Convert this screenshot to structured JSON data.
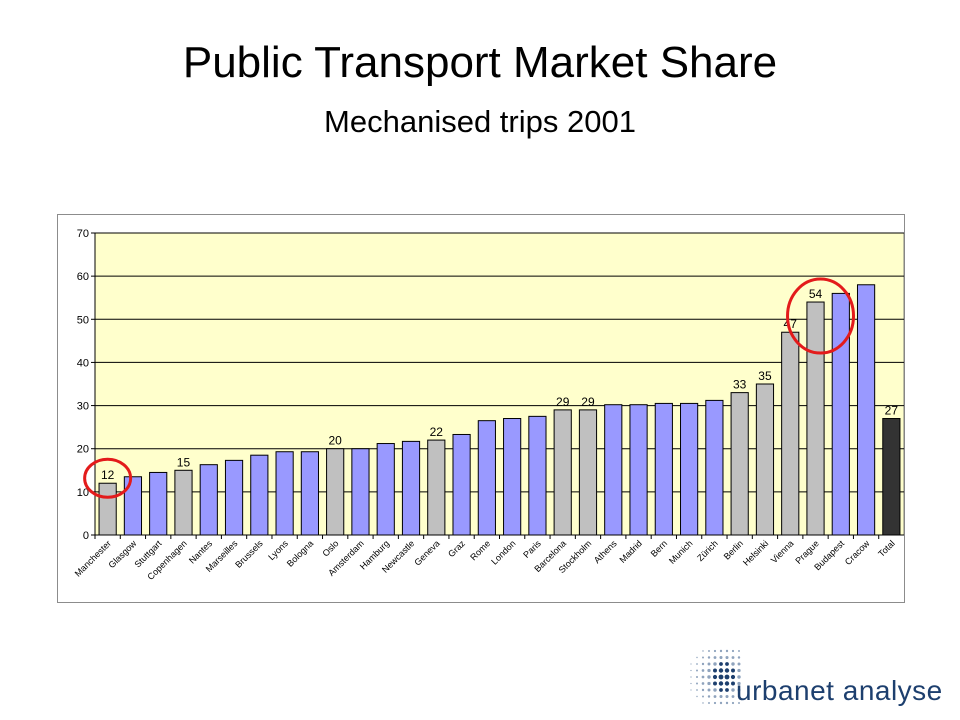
{
  "header": {
    "title": "Public Transport Market Share",
    "subtitle": "Mechanised trips 2001"
  },
  "logo": {
    "text": "urbanet analyse"
  },
  "colors": {
    "plot_background": "#ffffcc",
    "bar_blue": "#9999ff",
    "bar_grey": "#c0c0c0",
    "bar_total": "#333333",
    "highlight_circle": "#e31b1b"
  },
  "chart_data": {
    "type": "bar",
    "title": "",
    "xlabel": "",
    "ylabel": "",
    "ylim": [
      0,
      70
    ],
    "yticks": [
      0,
      10,
      20,
      30,
      40,
      50,
      60,
      70
    ],
    "grid": true,
    "legend": "none",
    "categories": [
      "Manchester",
      "Glasgow",
      "Stuttgart",
      "Copenhagen",
      "Nantes",
      "Marseilles",
      "Brussels",
      "Lyons",
      "Bologna",
      "Oslo",
      "Amsterdam",
      "Hamburg",
      "Newcastle",
      "Geneva",
      "Graz",
      "Rome",
      "London",
      "Paris",
      "Barcelona",
      "Stockholm",
      "Athens",
      "Madrid",
      "Bern",
      "Munich",
      "Zürich",
      "Berlin",
      "Helsinki",
      "Vienna",
      "Prague",
      "Budapest",
      "Cracow",
      "Total"
    ],
    "values": [
      12,
      13.5,
      14.5,
      15,
      16.3,
      17.3,
      18.5,
      19.3,
      19.3,
      20,
      20,
      21.2,
      21.7,
      22,
      23.3,
      26.5,
      27,
      27.5,
      29,
      29,
      30.2,
      30.2,
      30.5,
      30.5,
      31.2,
      33,
      35,
      47,
      54,
      56,
      58,
      27
    ],
    "bar_colors": [
      "grey",
      "blue",
      "blue",
      "grey",
      "blue",
      "blue",
      "blue",
      "blue",
      "blue",
      "grey",
      "blue",
      "blue",
      "blue",
      "grey",
      "blue",
      "blue",
      "blue",
      "blue",
      "grey",
      "grey",
      "blue",
      "blue",
      "blue",
      "blue",
      "blue",
      "grey",
      "grey",
      "grey",
      "grey",
      "blue",
      "blue",
      "total"
    ],
    "data_labels": [
      {
        "category": "Manchester",
        "text": "12"
      },
      {
        "category": "Copenhagen",
        "text": "15"
      },
      {
        "category": "Oslo",
        "text": "20"
      },
      {
        "category": "Geneva",
        "text": "22"
      },
      {
        "category": "Barcelona",
        "text": "29"
      },
      {
        "category": "Stockholm",
        "text": "29"
      },
      {
        "category": "Berlin",
        "text": "33"
      },
      {
        "category": "Helsinki",
        "text": "35"
      },
      {
        "category": "Vienna",
        "text": "47"
      },
      {
        "category": "Prague",
        "text": "54"
      },
      {
        "category": "Total",
        "text": "27"
      }
    ],
    "highlights": [
      {
        "category": "Manchester",
        "value": 12
      },
      {
        "category": "Prague",
        "value": 54
      }
    ]
  }
}
